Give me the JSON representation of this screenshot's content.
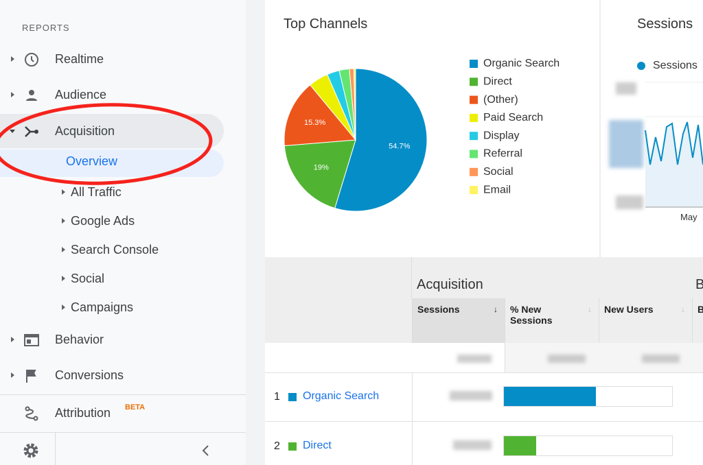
{
  "sidebar": {
    "heading": "REPORTS",
    "items": [
      "Realtime",
      "Audience",
      "Acquisition",
      "Overview",
      "All Traffic",
      "Google Ads",
      "Search Console",
      "Social",
      "Campaigns",
      "Behavior",
      "Conversions",
      "Attribution"
    ],
    "badge": "BETA"
  },
  "chart_data": {
    "type": "pie",
    "title": "Top Channels",
    "categories": [
      "Organic Search",
      "Direct",
      "(Other)",
      "Paid Search",
      "Display",
      "Referral",
      "Social",
      "Email"
    ],
    "values": [
      54.7,
      19,
      15.3,
      4.5,
      2.8,
      2.3,
      1,
      0.4
    ],
    "value_labels": [
      "54.7%",
      "19%",
      "15.3%",
      null,
      null,
      null,
      null,
      null
    ],
    "colors": [
      "#058dc7",
      "#50b432",
      "#ed561b",
      "#edef00",
      "#24cbe5",
      "#64e572",
      "#ff9655",
      "#fff263"
    ],
    "legend": "right"
  },
  "sessions_card": {
    "title": "Sessions",
    "legend": "Sessions",
    "x_label": "May"
  },
  "table": {
    "group": "Acquisition",
    "next_group": "B",
    "columns": [
      "Sessions",
      "% New Sessions",
      "New Users",
      "B"
    ],
    "ranks": [
      1,
      2
    ]
  }
}
